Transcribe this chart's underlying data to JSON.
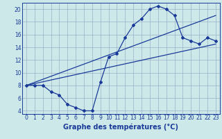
{
  "xlabel": "Graphe des températures (°C)",
  "bg_color": "#cce8e8",
  "grid_color": "#9ab0c8",
  "line_color": "#1a3a9a",
  "xlim": [
    -0.5,
    23.5
  ],
  "ylim": [
    3.5,
    21.0
  ],
  "xticks": [
    0,
    1,
    2,
    3,
    4,
    5,
    6,
    7,
    8,
    9,
    10,
    11,
    12,
    13,
    14,
    15,
    16,
    17,
    18,
    19,
    20,
    21,
    22,
    23
  ],
  "yticks": [
    4,
    6,
    8,
    10,
    12,
    14,
    16,
    18,
    20
  ],
  "curve1_x": [
    0,
    1,
    2,
    3,
    4,
    5,
    6,
    7,
    8,
    9,
    10,
    11,
    12,
    13,
    14,
    15,
    16,
    17,
    18,
    19,
    20,
    21,
    22,
    23
  ],
  "curve1_y": [
    8.0,
    8.0,
    8.0,
    7.0,
    6.5,
    5.0,
    4.5,
    4.0,
    4.0,
    8.5,
    12.5,
    13.0,
    15.5,
    17.5,
    18.5,
    20.0,
    20.5,
    20.0,
    19.0,
    15.5,
    15.0,
    14.5,
    15.5,
    15.0
  ],
  "trend1_x": [
    0,
    23
  ],
  "trend1_y": [
    8.0,
    19.0
  ],
  "trend2_x": [
    0,
    23
  ],
  "trend2_y": [
    8.0,
    14.5
  ],
  "xlabel_fontsize": 7,
  "tick_fontsize": 5.5
}
